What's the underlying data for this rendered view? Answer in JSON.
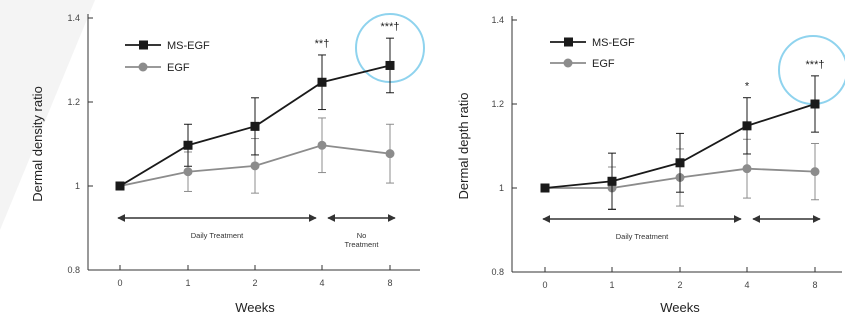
{
  "chart_data": [
    {
      "type": "line",
      "title": "",
      "xlabel": "Weeks",
      "ylabel": "Dermal density ratio",
      "categories": [
        "0",
        "1",
        "2",
        "4",
        "8"
      ],
      "yticks": [
        "0.8",
        "1",
        "1.2",
        "1.4"
      ],
      "ylim": [
        0.8,
        1.4
      ],
      "grid": false,
      "legend_position": "top-left",
      "series": [
        {
          "name": "MS-EGF",
          "marker": "square",
          "color": "#1a1a1a",
          "values": [
            1.0,
            1.097,
            1.142,
            1.247,
            1.287
          ],
          "errors": [
            0,
            0.05,
            0.068,
            0.065,
            0.065
          ]
        },
        {
          "name": "EGF",
          "marker": "circle",
          "color": "#8c8c8c",
          "values": [
            1.0,
            1.034,
            1.048,
            1.097,
            1.077
          ],
          "errors": [
            0,
            0.047,
            0.065,
            0.065,
            0.07
          ]
        }
      ],
      "significance": [
        {
          "category": "4",
          "label": "**†"
        },
        {
          "category": "8",
          "label": "***†",
          "circled": true
        }
      ],
      "periods": [
        {
          "label": "Daily Treatment",
          "from": "0",
          "to": "4"
        },
        {
          "label": "No\nTreatment",
          "from": "4",
          "to": "8"
        }
      ]
    },
    {
      "type": "line",
      "title": "",
      "xlabel": "Weeks",
      "ylabel": "Dermal depth ratio",
      "categories": [
        "0",
        "1",
        "2",
        "4",
        "8"
      ],
      "yticks": [
        "0.8",
        "1",
        "1.2",
        "1.4"
      ],
      "ylim": [
        0.8,
        1.4
      ],
      "grid": false,
      "legend_position": "top-left",
      "series": [
        {
          "name": "MS-EGF",
          "marker": "square",
          "color": "#1a1a1a",
          "values": [
            1.0,
            1.016,
            1.06,
            1.148,
            1.2
          ],
          "errors": [
            0,
            0.067,
            0.07,
            0.067,
            0.067
          ]
        },
        {
          "name": "EGF",
          "marker": "circle",
          "color": "#8c8c8c",
          "values": [
            1.0,
            1.0,
            1.025,
            1.046,
            1.039
          ],
          "errors": [
            0,
            0.05,
            0.068,
            0.07,
            0.067
          ]
        }
      ],
      "significance": [
        {
          "category": "4",
          "label": "*"
        },
        {
          "category": "8",
          "label": "***†",
          "circled": true
        }
      ],
      "periods": [
        {
          "label": "Daily Treatment",
          "from": "0",
          "to": "4"
        },
        {
          "label": "",
          "from": "4",
          "to": "8"
        }
      ]
    }
  ],
  "colors": {
    "axis": "#333333",
    "ms_egf": "#1a1a1a",
    "egf": "#8c8c8c",
    "highlight_circle": "#8fd3ee",
    "watermark": "#f1f1f1"
  }
}
